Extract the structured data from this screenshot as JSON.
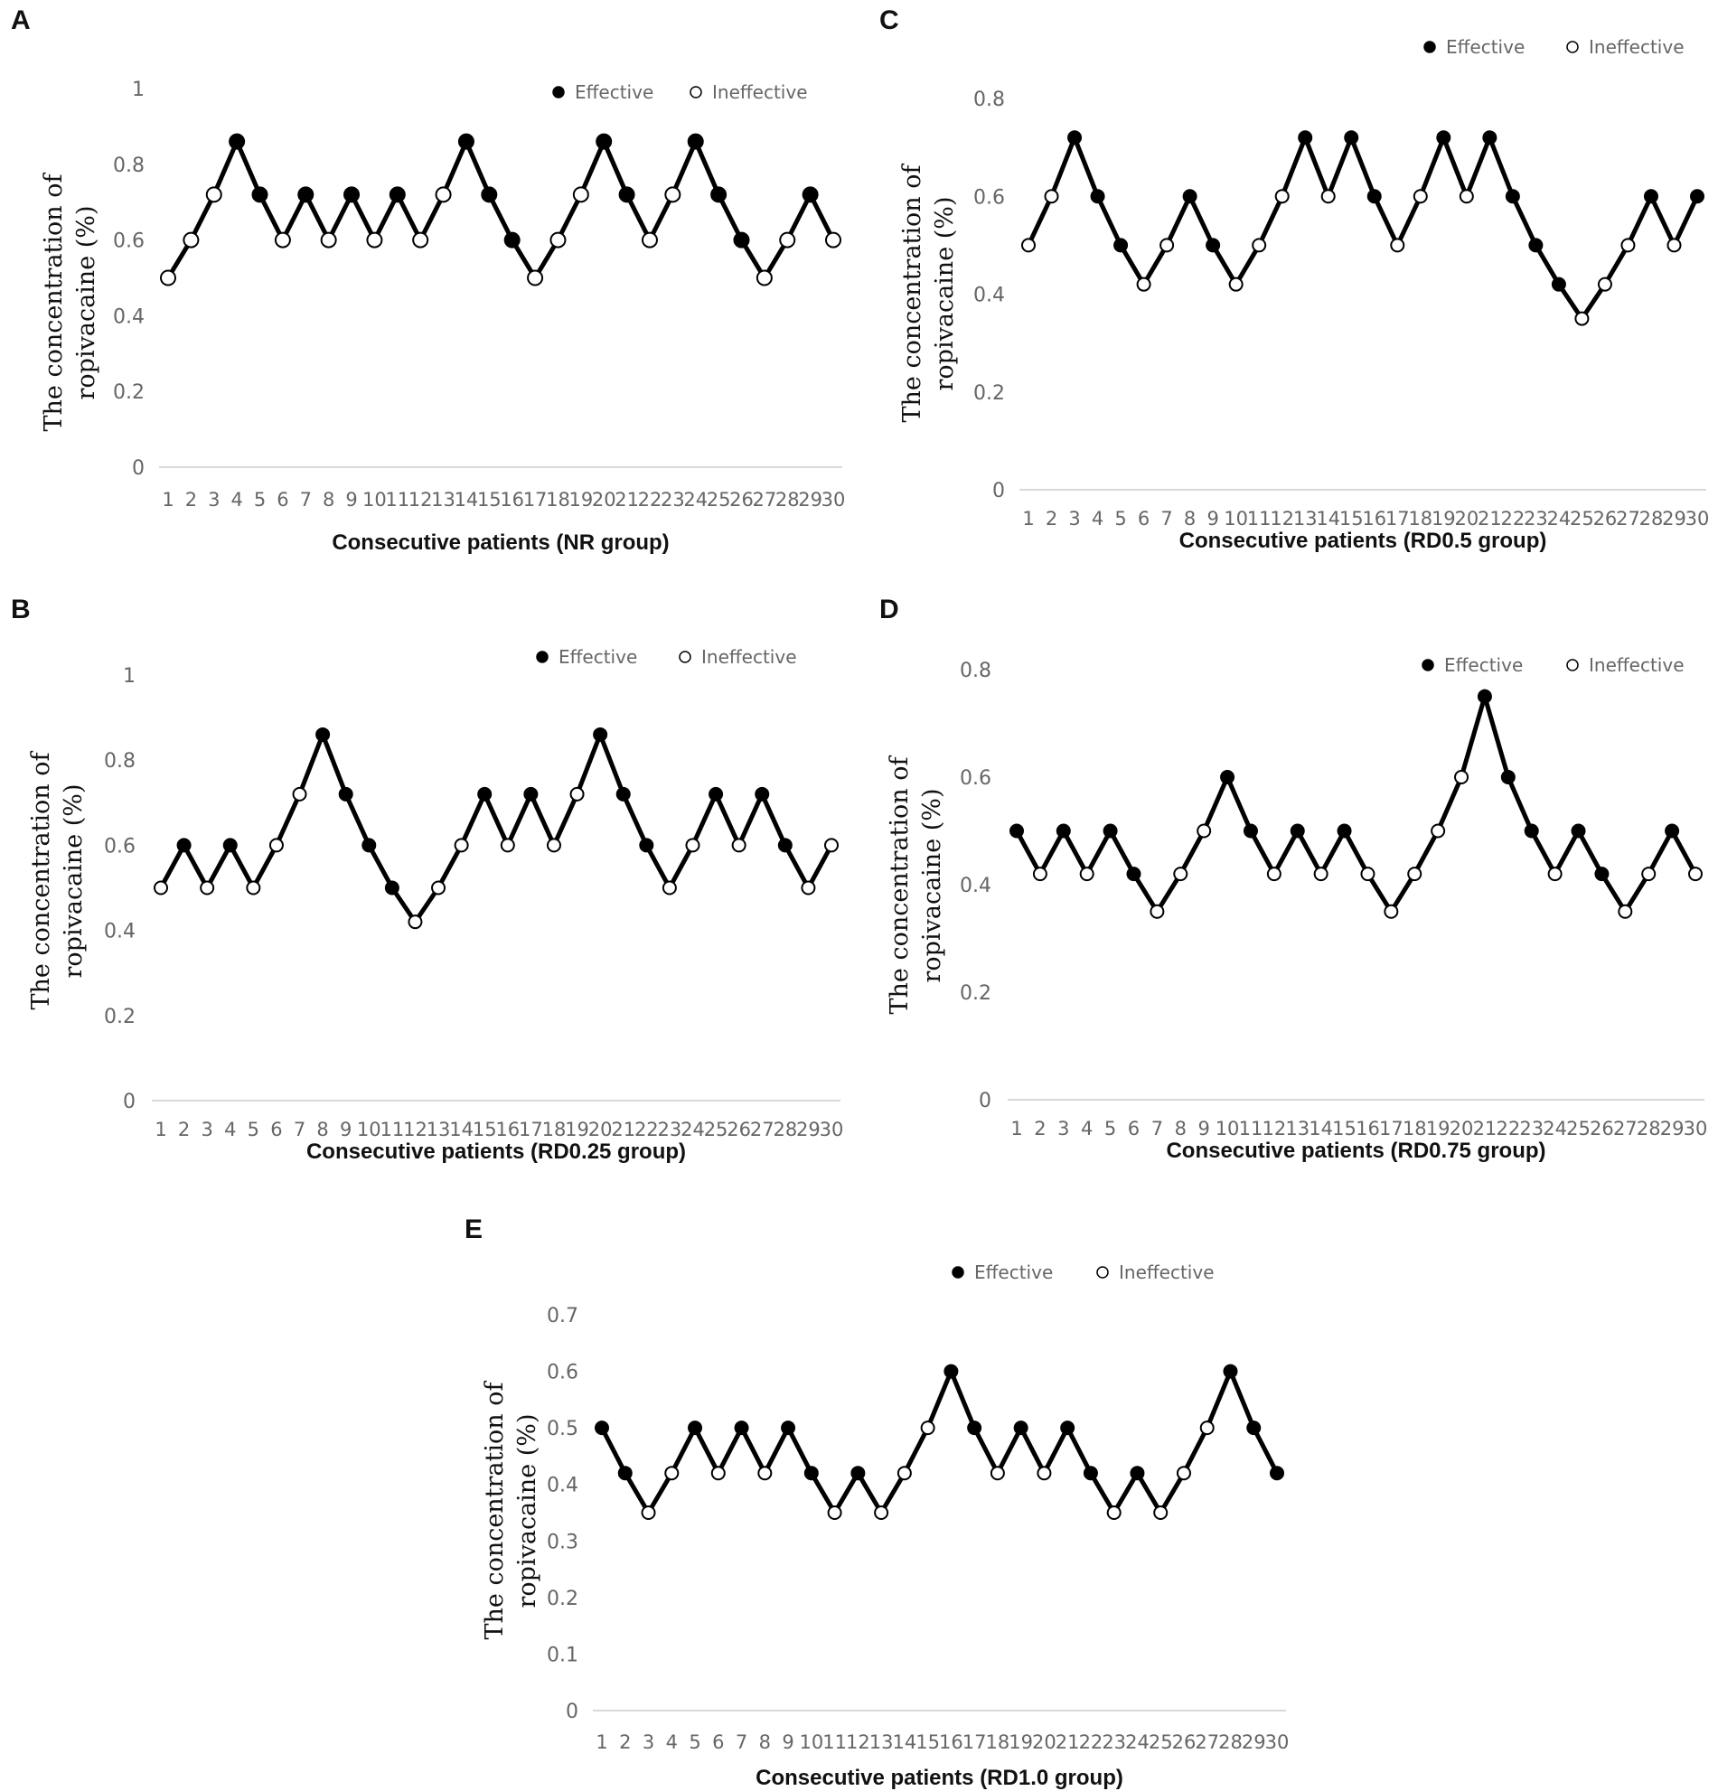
{
  "legend": {
    "effective": "Effective",
    "ineffective": "Ineffective"
  },
  "chart_data": [
    {
      "panel": "A",
      "type": "line",
      "title": "",
      "xlabel": "Consecutive patients (NR group)",
      "ylabel": [
        "The concentration of",
        "ropivacaine (%)"
      ],
      "ylim": [
        0,
        1
      ],
      "yticks": [
        "0",
        "0.2",
        "0.4",
        "0.6",
        "0.8",
        "1"
      ],
      "categories": [
        "1",
        "2",
        "3",
        "4",
        "5",
        "6",
        "7",
        "8",
        "9",
        "10",
        "11",
        "12",
        "13",
        "14",
        "15",
        "16",
        "17",
        "18",
        "19",
        "20",
        "21",
        "22",
        "23",
        "24",
        "25",
        "26",
        "27",
        "28",
        "29",
        "30"
      ],
      "values": [
        0.5,
        0.6,
        0.72,
        0.86,
        0.72,
        0.6,
        0.72,
        0.6,
        0.72,
        0.6,
        0.72,
        0.6,
        0.72,
        0.86,
        0.72,
        0.6,
        0.5,
        0.6,
        0.72,
        0.86,
        0.72,
        0.6,
        0.72,
        0.86,
        0.72,
        0.6,
        0.5,
        0.6,
        0.72,
        0.6
      ],
      "effective": [
        0,
        0,
        0,
        1,
        1,
        0,
        1,
        0,
        1,
        0,
        1,
        0,
        0,
        1,
        1,
        1,
        0,
        0,
        0,
        1,
        1,
        0,
        0,
        1,
        1,
        1,
        0,
        0,
        1,
        0
      ],
      "legend_position": "top-right",
      "grid": false
    },
    {
      "panel": "B",
      "type": "line",
      "title": "",
      "xlabel": "Consecutive patients (RD0.25 group)",
      "ylabel": [
        "The concentration of",
        "ropivacaine (%)"
      ],
      "ylim": [
        0,
        1
      ],
      "yticks": [
        "0",
        "0.2",
        "0.4",
        "0.6",
        "0.8",
        "1"
      ],
      "categories": [
        "1",
        "2",
        "3",
        "4",
        "5",
        "6",
        "7",
        "8",
        "9",
        "10",
        "11",
        "12",
        "13",
        "14",
        "15",
        "16",
        "17",
        "18",
        "19",
        "20",
        "21",
        "22",
        "23",
        "24",
        "25",
        "26",
        "27",
        "28",
        "29",
        "30"
      ],
      "values": [
        0.5,
        0.6,
        0.5,
        0.6,
        0.5,
        0.6,
        0.72,
        0.86,
        0.72,
        0.6,
        0.5,
        0.42,
        0.5,
        0.6,
        0.72,
        0.6,
        0.72,
        0.6,
        0.72,
        0.86,
        0.72,
        0.6,
        0.5,
        0.6,
        0.72,
        0.6,
        0.72,
        0.6,
        0.5,
        0.6
      ],
      "effective": [
        0,
        1,
        0,
        1,
        0,
        0,
        0,
        1,
        1,
        1,
        1,
        0,
        0,
        0,
        1,
        0,
        1,
        0,
        0,
        1,
        1,
        1,
        0,
        0,
        1,
        0,
        1,
        1,
        0,
        0
      ],
      "legend_position": "top-right",
      "grid": false
    },
    {
      "panel": "C",
      "type": "line",
      "title": "",
      "xlabel": "Consecutive patients (RD0.5 group)",
      "ylabel": [
        "The concentration of",
        "ropivacaine (%)"
      ],
      "ylim": [
        0,
        0.8
      ],
      "yticks": [
        "0",
        "0.2",
        "0.4",
        "0.6",
        "0.8"
      ],
      "categories": [
        "1",
        "2",
        "3",
        "4",
        "5",
        "6",
        "7",
        "8",
        "9",
        "10",
        "11",
        "12",
        "13",
        "14",
        "15",
        "16",
        "17",
        "18",
        "19",
        "20",
        "21",
        "22",
        "23",
        "24",
        "25",
        "26",
        "27",
        "28",
        "29",
        "30"
      ],
      "values": [
        0.5,
        0.6,
        0.72,
        0.6,
        0.5,
        0.42,
        0.5,
        0.6,
        0.5,
        0.42,
        0.5,
        0.6,
        0.72,
        0.6,
        0.72,
        0.6,
        0.5,
        0.6,
        0.72,
        0.6,
        0.72,
        0.6,
        0.5,
        0.42,
        0.35,
        0.42,
        0.5,
        0.6,
        0.5,
        0.6
      ],
      "effective": [
        0,
        0,
        1,
        1,
        1,
        0,
        0,
        1,
        1,
        0,
        0,
        0,
        1,
        0,
        1,
        1,
        0,
        0,
        1,
        0,
        1,
        1,
        1,
        1,
        0,
        0,
        0,
        1,
        0,
        1
      ],
      "legend_position": "top-right",
      "grid": false
    },
    {
      "panel": "D",
      "type": "line",
      "title": "",
      "xlabel": "Consecutive patients (RD0.75 group)",
      "ylabel": [
        "The concentration of",
        "ropivacaine (%)"
      ],
      "ylim": [
        0,
        0.8
      ],
      "yticks": [
        "0",
        "0.2",
        "0.4",
        "0.6",
        "0.8"
      ],
      "categories": [
        "1",
        "2",
        "3",
        "4",
        "5",
        "6",
        "7",
        "8",
        "9",
        "10",
        "11",
        "12",
        "13",
        "14",
        "15",
        "16",
        "17",
        "18",
        "19",
        "20",
        "21",
        "22",
        "23",
        "24",
        "25",
        "26",
        "27",
        "28",
        "29",
        "30"
      ],
      "values": [
        0.5,
        0.42,
        0.5,
        0.42,
        0.5,
        0.42,
        0.35,
        0.42,
        0.5,
        0.6,
        0.5,
        0.42,
        0.5,
        0.42,
        0.5,
        0.42,
        0.35,
        0.42,
        0.5,
        0.6,
        0.75,
        0.6,
        0.5,
        0.42,
        0.5,
        0.42,
        0.35,
        0.42,
        0.5,
        0.42
      ],
      "effective": [
        1,
        0,
        1,
        0,
        1,
        1,
        0,
        0,
        0,
        1,
        1,
        0,
        1,
        0,
        1,
        0,
        0,
        0,
        0,
        0,
        1,
        1,
        1,
        0,
        1,
        1,
        0,
        0,
        1,
        0
      ],
      "legend_position": "top-right",
      "grid": false
    },
    {
      "panel": "E",
      "type": "line",
      "title": "",
      "xlabel": "Consecutive patients (RD1.0 group)",
      "ylabel": [
        "The concentration of",
        "ropivacaine (%)"
      ],
      "ylim": [
        0,
        0.7
      ],
      "yticks": [
        "0",
        "0.1",
        "0.2",
        "0.3",
        "0.4",
        "0.5",
        "0.6",
        "0.7"
      ],
      "categories": [
        "1",
        "2",
        "3",
        "4",
        "5",
        "6",
        "7",
        "8",
        "9",
        "10",
        "11",
        "12",
        "13",
        "14",
        "15",
        "16",
        "17",
        "18",
        "19",
        "20",
        "21",
        "22",
        "23",
        "24",
        "25",
        "26",
        "27",
        "28",
        "29",
        "30"
      ],
      "values": [
        0.5,
        0.42,
        0.35,
        0.42,
        0.5,
        0.42,
        0.5,
        0.42,
        0.5,
        0.42,
        0.35,
        0.42,
        0.35,
        0.42,
        0.5,
        0.6,
        0.5,
        0.42,
        0.5,
        0.42,
        0.5,
        0.42,
        0.35,
        0.42,
        0.35,
        0.42,
        0.5,
        0.6,
        0.5,
        0.42
      ],
      "effective": [
        1,
        1,
        0,
        0,
        1,
        0,
        1,
        0,
        1,
        1,
        0,
        1,
        0,
        0,
        0,
        1,
        1,
        0,
        1,
        0,
        1,
        1,
        0,
        1,
        0,
        0,
        0,
        1,
        1,
        1
      ],
      "legend_position": "top-center",
      "grid": false
    }
  ]
}
